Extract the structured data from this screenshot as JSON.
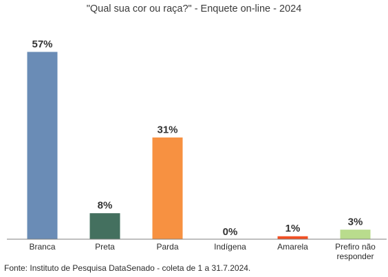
{
  "chart_data": {
    "type": "bar",
    "title": "\"Qual sua cor ou raça?\" - Enquete on-line - 2024",
    "categories": [
      "Branca",
      "Preta",
      "Parda",
      "Indígena",
      "Amarela",
      "Prefiro não responder"
    ],
    "category_lines": [
      [
        "Branca"
      ],
      [
        "Preta"
      ],
      [
        "Parda"
      ],
      [
        "Indígena"
      ],
      [
        "Amarela"
      ],
      [
        "Prefiro não",
        "responder"
      ]
    ],
    "values": [
      57,
      8,
      31,
      0,
      1,
      3
    ],
    "value_labels": [
      "57%",
      "8%",
      "31%",
      "0%",
      "1%",
      "3%"
    ],
    "colors": [
      "#6a8cb6",
      "#44705f",
      "#f79141",
      "#d9d9d9",
      "#f24f23",
      "#b9dc8d"
    ],
    "ylim": [
      0,
      57
    ],
    "grid": false,
    "legend": "none",
    "source": "Fonte: Instituto de Pesquisa DataSenado - coleta de 1 a 31.7.2024."
  }
}
